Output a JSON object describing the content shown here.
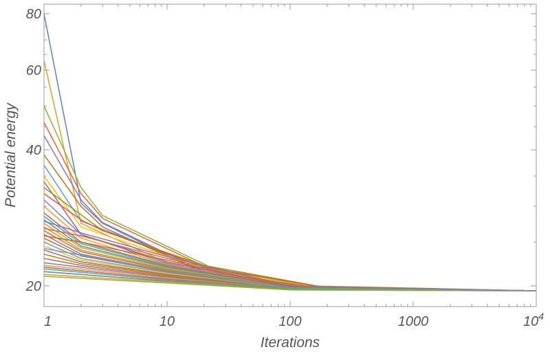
{
  "chart_data": {
    "type": "line",
    "title": "",
    "xlabel": "Iterations",
    "ylabel": "Potential energy",
    "x_scale": "log",
    "y_scale": "log",
    "xlim": [
      1,
      10000
    ],
    "ylim": [
      18,
      84
    ],
    "grid": false,
    "x_ticks": [
      {
        "value": 1,
        "label": "1"
      },
      {
        "value": 10,
        "label": "10"
      },
      {
        "value": 100,
        "label": "100"
      },
      {
        "value": 1000,
        "label": "1000"
      },
      {
        "value": 10000,
        "label": "10",
        "sup": "4"
      }
    ],
    "y_ticks": [
      {
        "value": 20,
        "label": "20"
      },
      {
        "value": 40,
        "label": "40"
      },
      {
        "value": 60,
        "label": "60"
      },
      {
        "value": 80,
        "label": "80"
      }
    ],
    "palette": [
      "#5e81b5",
      "#e19c24",
      "#8fb032",
      "#eb6235",
      "#8778b3",
      "#c56e1a",
      "#5d9ec7",
      "#ffbf00",
      "#a5609d",
      "#929600",
      "#e95536",
      "#6685d9",
      "#f89f13",
      "#bc5b80",
      "#47b66d"
    ],
    "series": [
      {
        "x": [
          1,
          2,
          3,
          20,
          200,
          10000
        ],
        "y": [
          80,
          30.5,
          27.5,
          21.3,
          19.8,
          19.5
        ]
      },
      {
        "x": [
          1,
          2,
          10,
          150,
          10000
        ],
        "y": [
          63,
          27.5,
          22.5,
          20.0,
          19.5
        ]
      },
      {
        "x": [
          1,
          2,
          3,
          30,
          200,
          10000
        ],
        "y": [
          50,
          33,
          28.6,
          21.2,
          19.8,
          19.5
        ]
      },
      {
        "x": [
          1,
          2,
          3,
          30,
          200,
          10000
        ],
        "y": [
          46,
          32,
          28.2,
          21.0,
          19.7,
          19.5
        ]
      },
      {
        "x": [
          1,
          2,
          3,
          25,
          200,
          10000
        ],
        "y": [
          43,
          31,
          27.6,
          20.9,
          19.7,
          19.5
        ]
      },
      {
        "x": [
          1,
          2,
          3,
          25,
          200,
          10000
        ],
        "y": [
          39,
          30,
          27.0,
          20.8,
          19.7,
          19.5
        ]
      },
      {
        "x": [
          1,
          2,
          20,
          200,
          10000
        ],
        "y": [
          37,
          27.8,
          22.0,
          19.8,
          19.5
        ]
      },
      {
        "x": [
          1,
          2,
          20,
          200,
          10000
        ],
        "y": [
          35,
          27.0,
          21.8,
          19.8,
          19.5
        ]
      },
      {
        "x": [
          1,
          2,
          10,
          100,
          10000
        ],
        "y": [
          34,
          26.0,
          22.6,
          19.9,
          19.5
        ]
      },
      {
        "x": [
          1,
          3,
          20,
          200,
          10000
        ],
        "y": [
          33,
          26.5,
          22.2,
          19.8,
          19.5
        ]
      },
      {
        "x": [
          1,
          2,
          3,
          20,
          200,
          10000
        ],
        "y": [
          32,
          28.0,
          26.5,
          22.0,
          19.8,
          19.5
        ]
      },
      {
        "x": [
          1,
          2,
          10,
          100,
          10000
        ],
        "y": [
          31,
          26.0,
          22.4,
          19.9,
          19.5
        ]
      },
      {
        "x": [
          1,
          2,
          10,
          100,
          10000
        ],
        "y": [
          30,
          25.5,
          22.3,
          19.9,
          19.5
        ]
      },
      {
        "x": [
          1,
          2,
          10,
          100,
          10000
        ],
        "y": [
          29,
          25.0,
          22.2,
          19.9,
          19.5
        ]
      },
      {
        "x": [
          1,
          2,
          10,
          100,
          10000
        ],
        "y": [
          28.5,
          24.8,
          22.1,
          19.8,
          19.5
        ]
      },
      {
        "x": [
          1,
          2,
          10,
          100,
          10000
        ],
        "y": [
          28,
          24.5,
          22.0,
          19.8,
          19.5
        ]
      },
      {
        "x": [
          1,
          2,
          10,
          100,
          10000
        ],
        "y": [
          27.5,
          24.3,
          21.9,
          19.8,
          19.5
        ]
      },
      {
        "x": [
          1,
          2,
          10,
          100,
          10000
        ],
        "y": [
          27,
          24.0,
          21.8,
          19.8,
          19.5
        ]
      },
      {
        "x": [
          1,
          2,
          10,
          100,
          10000
        ],
        "y": [
          26.5,
          23.8,
          21.7,
          19.8,
          19.5
        ]
      },
      {
        "x": [
          1,
          2,
          10,
          100,
          10000
        ],
        "y": [
          26,
          23.5,
          21.6,
          19.8,
          19.5
        ]
      },
      {
        "x": [
          1,
          2,
          10,
          100,
          10000
        ],
        "y": [
          25.5,
          23.3,
          21.5,
          19.7,
          19.5
        ]
      },
      {
        "x": [
          1,
          2,
          10,
          100,
          10000
        ],
        "y": [
          25,
          23.0,
          21.4,
          19.7,
          19.5
        ]
      },
      {
        "x": [
          1,
          2,
          10,
          100,
          10000
        ],
        "y": [
          24.5,
          22.8,
          21.3,
          19.7,
          19.5
        ]
      },
      {
        "x": [
          1,
          2,
          10,
          100,
          10000
        ],
        "y": [
          24,
          22.6,
          21.2,
          19.7,
          19.5
        ]
      },
      {
        "x": [
          1,
          2,
          10,
          100,
          10000
        ],
        "y": [
          23.5,
          22.4,
          21.1,
          19.7,
          19.5
        ]
      },
      {
        "x": [
          1,
          2,
          10,
          100,
          10000
        ],
        "y": [
          23,
          22.2,
          21.0,
          19.7,
          19.5
        ]
      },
      {
        "x": [
          1,
          2,
          10,
          100,
          10000
        ],
        "y": [
          22.5,
          22.0,
          20.9,
          19.7,
          19.5
        ]
      },
      {
        "x": [
          1,
          2,
          10,
          100,
          10000
        ],
        "y": [
          22.2,
          21.8,
          20.8,
          19.7,
          19.5
        ]
      },
      {
        "x": [
          1,
          10,
          100,
          10000
        ],
        "y": [
          22.0,
          20.7,
          19.7,
          19.5
        ]
      },
      {
        "x": [
          1,
          10,
          100,
          10000
        ],
        "y": [
          21.8,
          20.6,
          19.7,
          19.5
        ]
      },
      {
        "x": [
          1,
          10,
          100,
          10000
        ],
        "y": [
          21.5,
          20.5,
          19.6,
          19.5
        ]
      },
      {
        "x": [
          1,
          10,
          100,
          10000
        ],
        "y": [
          21.2,
          20.4,
          19.6,
          19.5
        ]
      },
      {
        "x": [
          1,
          10,
          100,
          10000
        ],
        "y": [
          21.0,
          20.3,
          19.6,
          19.5
        ]
      },
      {
        "x": [
          1,
          2,
          10,
          100,
          10000
        ],
        "y": [
          26.8,
          25.8,
          23.0,
          20.0,
          19.5
        ]
      },
      {
        "x": [
          1,
          2,
          10,
          100,
          10000
        ],
        "y": [
          27.8,
          26.2,
          23.2,
          20.0,
          19.5
        ]
      },
      {
        "x": [
          1,
          2,
          10,
          100,
          10000
        ],
        "y": [
          25.8,
          25.0,
          22.8,
          19.9,
          19.5
        ]
      },
      {
        "x": [
          1,
          2,
          10,
          100,
          10000
        ],
        "y": [
          24.2,
          23.4,
          21.6,
          19.8,
          19.5
        ]
      }
    ]
  }
}
